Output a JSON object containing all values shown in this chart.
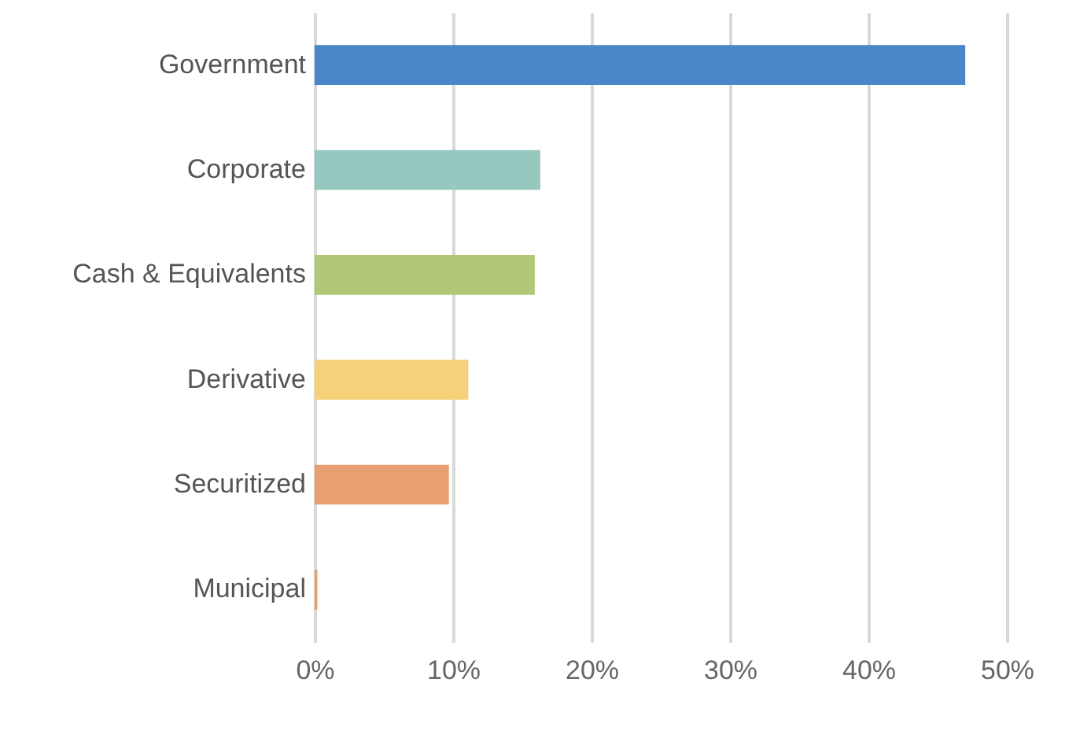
{
  "chart_data": {
    "type": "bar",
    "orientation": "horizontal",
    "categories": [
      "Government",
      "Corporate",
      "Cash & Equivalents",
      "Derivative",
      "Securitized",
      "Municipal"
    ],
    "values": [
      47,
      16.3,
      15.9,
      11.1,
      9.7,
      0.2
    ],
    "colors": [
      "#4a86c8",
      "#96c8c0",
      "#b0c878",
      "#f5d27a",
      "#e8a070",
      "#e8a070"
    ],
    "xlim": [
      0,
      50
    ],
    "xticks": [
      {
        "value": 0,
        "label": "0%"
      },
      {
        "value": 10,
        "label": "10%"
      },
      {
        "value": 20,
        "label": "20%"
      },
      {
        "value": 30,
        "label": "30%"
      },
      {
        "value": 40,
        "label": "40%"
      },
      {
        "value": 50,
        "label": "50%"
      }
    ],
    "grid": "x"
  }
}
